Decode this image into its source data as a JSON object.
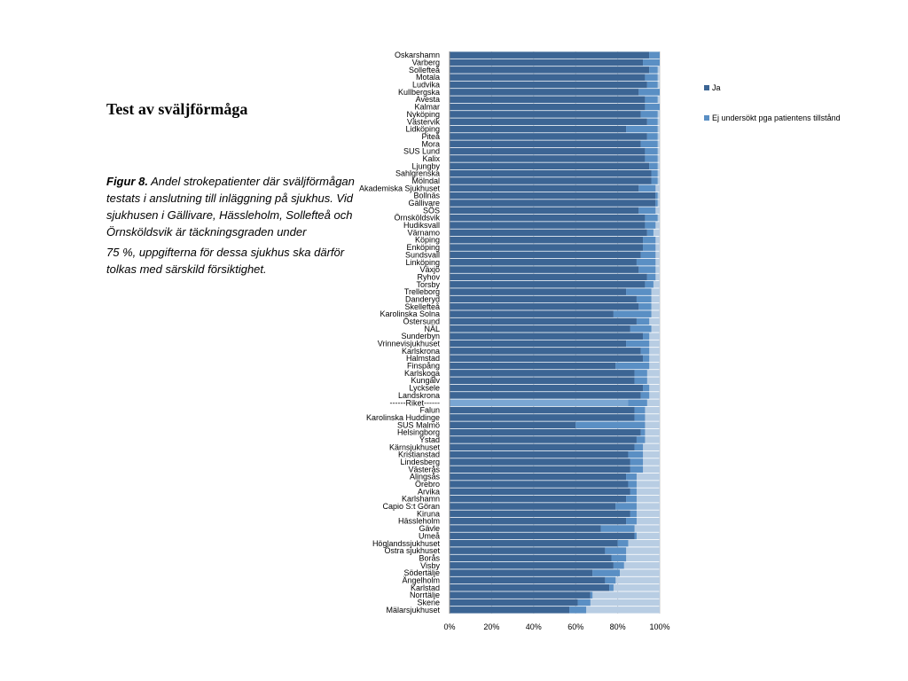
{
  "slide": {
    "title": "Test av sväljförmåga",
    "caption_label": "Figur 8.",
    "caption_line1": "Andel strokepatienter där sväljförmågan testats i anslutning till inläggning på sjukhus. Vid sjukhusen i Gällivare, Hässleholm, Sollefteå och Örnsköldsvik är täckningsgraden under",
    "caption_line2": "75 %, uppgifterna för dessa sjukhus ska därför tolkas med särskild försiktighet."
  },
  "colors": {
    "ja": "#3c6594",
    "ej": "#5a8fc4",
    "rest": "#b8cde3",
    "highlight": "#7aa6d2",
    "grid": "#c8c8c8"
  },
  "chart_data": {
    "type": "bar",
    "orientation": "horizontal",
    "stacked": true,
    "xlim": [
      0,
      100
    ],
    "x_ticks": [
      "0%",
      "20%",
      "40%",
      "60%",
      "80%",
      "100%"
    ],
    "legend_position": "right",
    "grid": true,
    "categories": [
      "Oskarshamn",
      "Varberg",
      "Sollefteå",
      "Motala",
      "Ludvika",
      "Kullbergska",
      "Avesta",
      "Kalmar",
      "Nyköping",
      "Västervik",
      "Lidköping",
      "Piteå",
      "Mora",
      "SUS Lund",
      "Kalix",
      "Ljungby",
      "Sahlgrenska",
      "Mölndal",
      "Akademiska Sjukhuset",
      "Bollnäs",
      "Gällivare",
      "SÖS",
      "Örnsköldsvik",
      "Hudiksvall",
      "Värnamo",
      "Köping",
      "Enköping",
      "Sundsvall",
      "Linköping",
      "Växjö",
      "Ryhov",
      "Torsby",
      "Trelleborg",
      "Danderyd",
      "Skellefteå",
      "Karolinska Solna",
      "Östersund",
      "NÄL",
      "Sunderbyn",
      "Vrinnevisjukhuset",
      "Karlskrona",
      "Halmstad",
      "Finspång",
      "Karlskoga",
      "Kungälv",
      "Lycksele",
      "Landskrona",
      "------Riket------",
      "Falun",
      "Karolinska Huddinge",
      "SUS Malmö",
      "Helsingborg",
      "Ystad",
      "Kärnsjukhuset",
      "Kristianstad",
      "Lindesberg",
      "Västerås",
      "Alingsås",
      "Örebro",
      "Arvika",
      "Karlshamn",
      "Capio S:t Göran",
      "Kiruna",
      "Hässleholm",
      "Gävle",
      "Umeå",
      "Höglandssjukhuset",
      "Östra sjukhuset",
      "Borås",
      "Visby",
      "Södertälje",
      "Ängelholm",
      "Karlstad",
      "Norrtälje",
      "Skene",
      "Mälarsjukhuset"
    ],
    "highlight_category": "------Riket------",
    "series": [
      {
        "name": "Ja",
        "values": [
          95,
          92,
          95,
          93,
          94,
          90,
          93,
          93,
          91,
          94,
          84,
          94,
          91,
          93,
          93,
          95,
          96,
          96,
          90,
          98,
          98,
          90,
          93,
          93,
          94,
          92,
          92,
          91,
          89,
          90,
          94,
          93,
          84,
          89,
          90,
          78,
          89,
          86,
          92,
          84,
          91,
          92,
          79,
          88,
          88,
          92,
          91,
          85,
          88,
          88,
          60,
          91,
          89,
          88,
          85,
          86,
          86,
          84,
          85,
          86,
          84,
          79,
          86,
          84,
          72,
          88,
          80,
          74,
          77,
          78,
          68,
          74,
          76,
          67,
          61,
          57
        ]
      },
      {
        "name": "Ej undersökt pga patientens tillstånd",
        "values": [
          5,
          8,
          4,
          6,
          5,
          10,
          6,
          7,
          8,
          5,
          15,
          5,
          8,
          6,
          6,
          4,
          3,
          3,
          8,
          1,
          1,
          8,
          6,
          5,
          3,
          6,
          6,
          7,
          9,
          8,
          4,
          4,
          12,
          7,
          6,
          18,
          6,
          10,
          3,
          11,
          4,
          3,
          16,
          6,
          6,
          3,
          4,
          9,
          5,
          5,
          33,
          2,
          4,
          4,
          7,
          6,
          6,
          5,
          4,
          3,
          5,
          10,
          3,
          5,
          16,
          1,
          5,
          10,
          7,
          5,
          13,
          5,
          2,
          1,
          6,
          8
        ]
      }
    ]
  }
}
